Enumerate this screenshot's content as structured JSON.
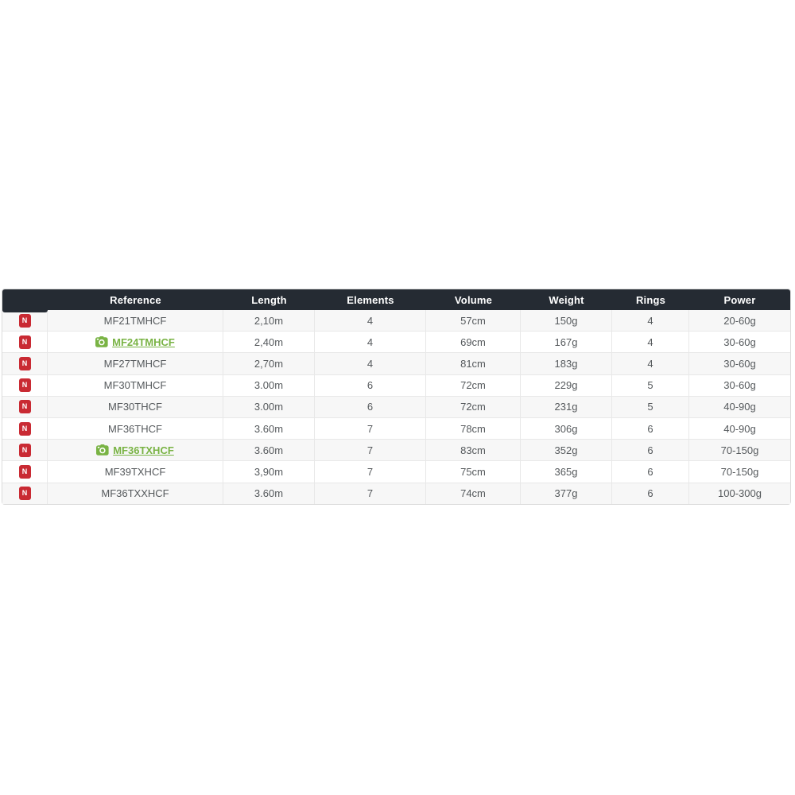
{
  "table": {
    "badge_label": "N",
    "columns": [
      {
        "key": "badge",
        "label": ""
      },
      {
        "key": "reference",
        "label": "Reference"
      },
      {
        "key": "length",
        "label": "Length"
      },
      {
        "key": "elements",
        "label": "Elements"
      },
      {
        "key": "volume",
        "label": "Volume"
      },
      {
        "key": "weight",
        "label": "Weight"
      },
      {
        "key": "rings",
        "label": "Rings"
      },
      {
        "key": "power",
        "label": "Power"
      }
    ],
    "rows": [
      {
        "reference": "MF21TMHCF",
        "link": false,
        "length": "2,10m",
        "elements": "4",
        "volume": "57cm",
        "weight": "150g",
        "rings": "4",
        "power": "20-60g"
      },
      {
        "reference": "MF24TMHCF",
        "link": true,
        "length": "2,40m",
        "elements": "4",
        "volume": "69cm",
        "weight": "167g",
        "rings": "4",
        "power": "30-60g"
      },
      {
        "reference": "MF27TMHCF",
        "link": false,
        "length": "2,70m",
        "elements": "4",
        "volume": "81cm",
        "weight": "183g",
        "rings": "4",
        "power": "30-60g"
      },
      {
        "reference": "MF30TMHCF",
        "link": false,
        "length": "3.00m",
        "elements": "6",
        "volume": "72cm",
        "weight": "229g",
        "rings": "5",
        "power": "30-60g"
      },
      {
        "reference": "MF30THCF",
        "link": false,
        "length": "3.00m",
        "elements": "6",
        "volume": "72cm",
        "weight": "231g",
        "rings": "5",
        "power": "40-90g"
      },
      {
        "reference": "MF36THCF",
        "link": false,
        "length": "3.60m",
        "elements": "7",
        "volume": "78cm",
        "weight": "306g",
        "rings": "6",
        "power": "40-90g"
      },
      {
        "reference": "MF36TXHCF",
        "link": true,
        "length": "3.60m",
        "elements": "7",
        "volume": "83cm",
        "weight": "352g",
        "rings": "6",
        "power": "70-150g"
      },
      {
        "reference": "MF39TXHCF",
        "link": false,
        "length": "3,90m",
        "elements": "7",
        "volume": "75cm",
        "weight": "365g",
        "rings": "6",
        "power": "70-150g"
      },
      {
        "reference": "MF36TXXHCF",
        "link": false,
        "length": "3.60m",
        "elements": "7",
        "volume": "74cm",
        "weight": "377g",
        "rings": "6",
        "power": "100-300g"
      }
    ],
    "colors": {
      "header_bg": "#252b33",
      "header_text": "#ffffff",
      "row_alt_bg": "#f7f7f7",
      "row_bg": "#ffffff",
      "body_text": "#55595c",
      "border": "#e8e8e8",
      "badge_red": "#c92a33",
      "link_green": "#79b344"
    }
  }
}
